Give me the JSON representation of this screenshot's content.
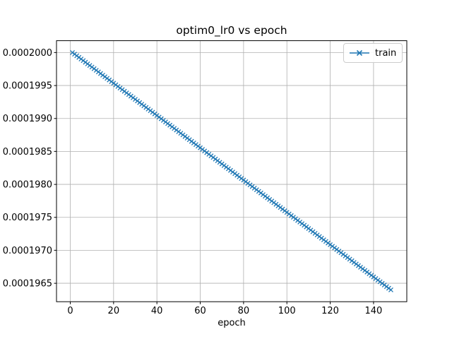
{
  "colors": {
    "series_blue": "#1f77b4",
    "grid": "#b0b0b0",
    "axes_border": "#000000",
    "legend_border": "#cccccc",
    "text": "#000000",
    "background": "#ffffff"
  },
  "chart_data": {
    "type": "line",
    "title": "optim0_lr0 vs epoch",
    "xlabel": "epoch",
    "ylabel": "",
    "grid": true,
    "legend_position": "upper right",
    "xlim": [
      -6.35,
      155.35
    ],
    "ylim": [
      0.00019622,
      0.00020018
    ],
    "x_ticks": {
      "values": [
        0,
        20,
        40,
        60,
        80,
        100,
        120,
        140
      ],
      "labels": [
        "0",
        "20",
        "40",
        "60",
        "80",
        "100",
        "120",
        "140"
      ]
    },
    "y_ticks": {
      "values": [
        0.0002,
        0.0001995,
        0.000199,
        0.0001985,
        0.000198,
        0.0001975,
        0.000197,
        0.0001965
      ],
      "labels": [
        "0.0002000",
        "0.0001995",
        "0.0001990",
        "0.0001985",
        "0.0001980",
        "0.0001975",
        "0.0001970",
        "0.0001965"
      ]
    },
    "series": [
      {
        "name": "train",
        "color": "#1f77b4",
        "marker": "x",
        "x": [
          1,
          2,
          3,
          4,
          5,
          6,
          7,
          8,
          9,
          10,
          11,
          12,
          13,
          14,
          15,
          16,
          17,
          18,
          19,
          20,
          21,
          22,
          23,
          24,
          25,
          26,
          27,
          28,
          29,
          30,
          31,
          32,
          33,
          34,
          35,
          36,
          37,
          38,
          39,
          40,
          41,
          42,
          43,
          44,
          45,
          46,
          47,
          48,
          49,
          50,
          51,
          52,
          53,
          54,
          55,
          56,
          57,
          58,
          59,
          60,
          61,
          62,
          63,
          64,
          65,
          66,
          67,
          68,
          69,
          70,
          71,
          72,
          73,
          74,
          75,
          76,
          77,
          78,
          79,
          80,
          81,
          82,
          83,
          84,
          85,
          86,
          87,
          88,
          89,
          90,
          91,
          92,
          93,
          94,
          95,
          96,
          97,
          98,
          99,
          100,
          101,
          102,
          103,
          104,
          105,
          106,
          107,
          108,
          109,
          110,
          111,
          112,
          113,
          114,
          115,
          116,
          117,
          118,
          119,
          120,
          121,
          122,
          123,
          124,
          125,
          126,
          127,
          128,
          129,
          130,
          131,
          132,
          133,
          134,
          135,
          136,
          137,
          138,
          139,
          140,
          141,
          142,
          143,
          144,
          145,
          146,
          147,
          148
        ],
        "y": [
          0.0002,
          0.00019997551,
          0.00019995102,
          0.00019992653,
          0.00019990204,
          0.00019987755,
          0.00019985306,
          0.00019982857,
          0.00019980408,
          0.00019977959,
          0.0001997551,
          0.00019973061,
          0.00019970612,
          0.00019968163,
          0.00019965714,
          0.00019963265,
          0.00019960816,
          0.00019958367,
          0.00019955918,
          0.00019953469,
          0.0001995102,
          0.00019948571,
          0.00019946122,
          0.00019943673,
          0.00019941224,
          0.00019938775,
          0.00019936326,
          0.00019933877,
          0.00019931428,
          0.00019928979,
          0.0001992653,
          0.00019924081,
          0.00019921632,
          0.00019919183,
          0.00019916734,
          0.00019914285,
          0.00019911836,
          0.00019909387,
          0.00019906938,
          0.00019904489,
          0.0001990204,
          0.00019899591,
          0.00019897142,
          0.00019894693,
          0.00019892244,
          0.00019889795,
          0.00019887346,
          0.00019884897,
          0.00019882448,
          0.00019879999,
          0.0001987755,
          0.00019875101,
          0.00019872652,
          0.00019870203,
          0.00019867754,
          0.00019865305,
          0.00019862856,
          0.00019860407,
          0.00019857958,
          0.00019855509,
          0.0001985306,
          0.00019850611,
          0.00019848162,
          0.00019845713,
          0.00019843264,
          0.00019840815,
          0.00019838366,
          0.00019835917,
          0.00019833468,
          0.00019831019,
          0.0001982857,
          0.00019826121,
          0.00019823672,
          0.00019821223,
          0.00019818774,
          0.00019816325,
          0.00019813876,
          0.00019811427,
          0.00019808978,
          0.00019806529,
          0.0001980408,
          0.00019801631,
          0.00019799182,
          0.00019796733,
          0.00019794284,
          0.00019791835,
          0.00019789386,
          0.00019786937,
          0.00019784488,
          0.00019782039,
          0.0001977959,
          0.00019777141,
          0.00019774692,
          0.00019772243,
          0.00019769794,
          0.00019767345,
          0.00019764896,
          0.00019762447,
          0.00019759998,
          0.00019757549,
          0.000197551,
          0.00019752651,
          0.00019750202,
          0.00019747753,
          0.00019745304,
          0.00019742855,
          0.00019740406,
          0.00019737957,
          0.00019735508,
          0.00019733059,
          0.0001973061,
          0.00019728161,
          0.00019725712,
          0.00019723263,
          0.00019720814,
          0.00019718365,
          0.00019715916,
          0.00019713467,
          0.00019711018,
          0.00019708569,
          0.0001970612,
          0.00019703671,
          0.00019701222,
          0.00019698773,
          0.00019696324,
          0.00019693875,
          0.00019691426,
          0.00019688977,
          0.00019686528,
          0.00019684079,
          0.0001968163,
          0.00019679181,
          0.00019676732,
          0.00019674283,
          0.00019671834,
          0.00019669385,
          0.00019666936,
          0.00019664487,
          0.00019662038,
          0.00019659589,
          0.0001965714,
          0.00019654691,
          0.00019652242,
          0.00019649793,
          0.00019647344,
          0.00019644895,
          0.00019642446,
          0.00019639997
        ]
      }
    ]
  }
}
